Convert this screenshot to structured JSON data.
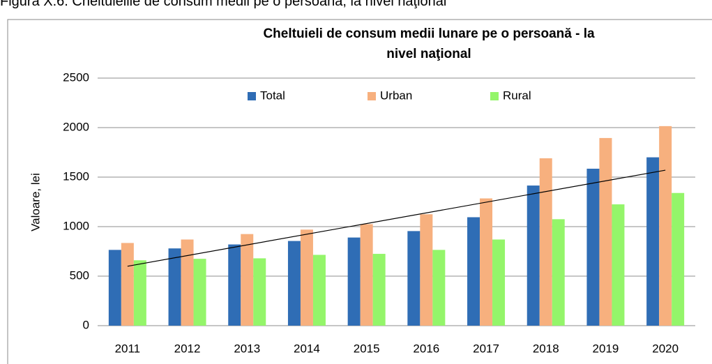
{
  "caption": "Figura  X.6. Cheltuielile de consum medii pe o persoană, la nivel naţional",
  "chart_data": {
    "type": "bar",
    "title": "Cheltuieli  de consum medii lunare pe o persoană - la nivel naţional",
    "ylabel": "Valoare, lei",
    "categories": [
      "2011",
      "2012",
      "2013",
      "2014",
      "2015",
      "2016",
      "2017",
      "2018",
      "2019",
      "2020"
    ],
    "series": [
      {
        "name": "Total",
        "color": "#2f6db5",
        "values": [
          765,
          780,
          820,
          855,
          890,
          955,
          1095,
          1415,
          1585,
          1700
        ]
      },
      {
        "name": "Urban",
        "color": "#f7b07e",
        "values": [
          835,
          870,
          925,
          970,
          1025,
          1125,
          1285,
          1690,
          1895,
          2015
        ]
      },
      {
        "name": "Rural",
        "color": "#94f56a",
        "values": [
          660,
          675,
          680,
          715,
          725,
          765,
          870,
          1075,
          1225,
          1340
        ]
      }
    ],
    "trend": {
      "color": "#000000",
      "values": [
        600,
        1570
      ]
    },
    "ylim": [
      0,
      2500
    ],
    "yticks": [
      0,
      500,
      1000,
      1500,
      2000,
      2500
    ],
    "grid": true,
    "legend": "top"
  }
}
